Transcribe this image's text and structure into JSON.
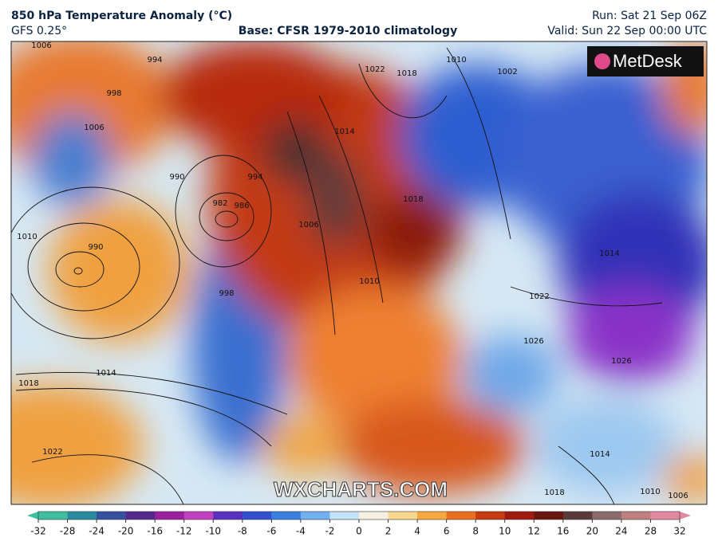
{
  "header": {
    "title": "850 hPa Temperature Anomaly (°C)",
    "model": "GFS 0.25°",
    "base": "Base: CFSR 1979-2010 climatology",
    "run": "Run: Sat 21 Sep 06Z",
    "valid": "Valid: Sun 22 Sep 00:00 UTC"
  },
  "logo": "MetDesk",
  "watermark": "WXCHARTS.COM",
  "isobar_labels": [
    1006,
    994,
    998,
    1006,
    1022,
    1018,
    1010,
    1002,
    1014,
    990,
    982,
    986,
    994,
    1018,
    1006,
    1010,
    990,
    1010,
    998,
    1014,
    1018,
    1022,
    1022,
    1026,
    1026,
    1014,
    1018,
    1010,
    1006,
    1014
  ],
  "colorbar": {
    "ticks": [
      -32,
      -28,
      -24,
      -20,
      -16,
      -12,
      -10,
      -8,
      -6,
      -4,
      -2,
      0,
      2,
      4,
      6,
      8,
      10,
      12,
      16,
      20,
      24,
      28,
      32
    ],
    "colors": [
      "#3fbf9f",
      "#2a8aa0",
      "#34509e",
      "#55288e",
      "#9a20a0",
      "#c040c0",
      "#5a30c0",
      "#3050d0",
      "#3a80e0",
      "#70b0f0",
      "#c4e2f8",
      "#f5f0e0",
      "#f8d890",
      "#f5a840",
      "#e87020",
      "#c83a10",
      "#a01a10",
      "#6a1410",
      "#5a3a3a",
      "#8a6a6a",
      "#c08080",
      "#e08aa0"
    ]
  }
}
